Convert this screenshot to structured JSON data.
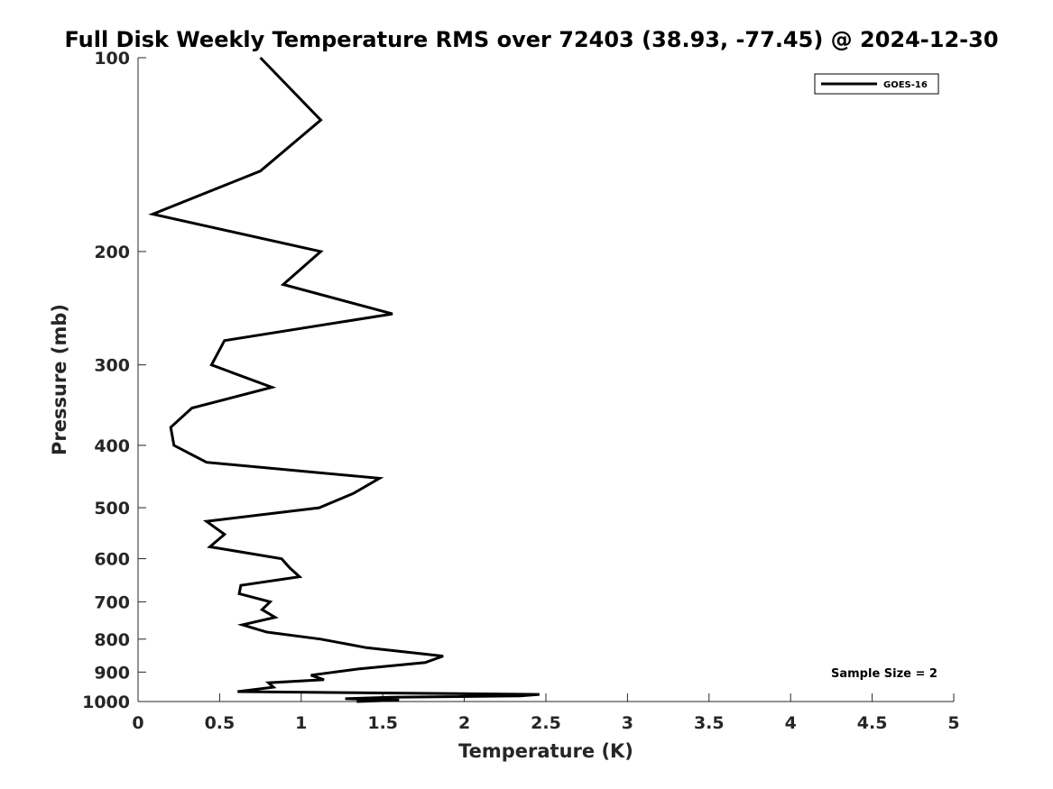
{
  "chart_data": {
    "type": "line",
    "title": "Full Disk Weekly Temperature RMS over 72403 (38.93, -77.45) @ 2024-12-30",
    "xlabel": "Temperature (K)",
    "ylabel": "Pressure (mb)",
    "xlim": [
      0,
      5
    ],
    "ylim": [
      100,
      1000
    ],
    "y_scale": "log",
    "y_reversed": true,
    "grid": false,
    "x_ticks": [
      "0",
      "0.5",
      "1",
      "1.5",
      "2",
      "2.5",
      "3",
      "3.5",
      "4",
      "4.5",
      "5"
    ],
    "y_ticks": [
      "100",
      "200",
      "300",
      "400",
      "500",
      "600",
      "700",
      "800",
      "900",
      "1000"
    ],
    "legend": {
      "position": "top-right",
      "entries": [
        "GOES-16"
      ]
    },
    "annotation": "Sample Size = 2",
    "series": [
      {
        "name": "GOES-16",
        "color": "#000000",
        "points": [
          [
            0.75,
            100
          ],
          [
            1.12,
            125
          ],
          [
            0.75,
            150
          ],
          [
            0.09,
            175
          ],
          [
            1.12,
            200
          ],
          [
            0.89,
            225
          ],
          [
            1.56,
            250
          ],
          [
            0.53,
            275
          ],
          [
            0.45,
            300
          ],
          [
            0.82,
            325
          ],
          [
            0.33,
            350
          ],
          [
            0.2,
            375
          ],
          [
            0.22,
            400
          ],
          [
            0.42,
            425
          ],
          [
            1.48,
            450
          ],
          [
            1.32,
            475
          ],
          [
            1.11,
            500
          ],
          [
            0.42,
            525
          ],
          [
            0.53,
            550
          ],
          [
            0.44,
            575
          ],
          [
            0.88,
            600
          ],
          [
            0.93,
            620
          ],
          [
            0.99,
            640
          ],
          [
            0.63,
            660
          ],
          [
            0.62,
            680
          ],
          [
            0.81,
            700
          ],
          [
            0.76,
            720
          ],
          [
            0.84,
            740
          ],
          [
            0.64,
            760
          ],
          [
            0.79,
            780
          ],
          [
            1.12,
            800
          ],
          [
            1.4,
            825
          ],
          [
            1.87,
            850
          ],
          [
            1.76,
            870
          ],
          [
            1.35,
            890
          ],
          [
            1.06,
            910
          ],
          [
            1.14,
            925
          ],
          [
            0.8,
            935
          ],
          [
            0.83,
            950
          ],
          [
            0.61,
            965
          ],
          [
            2.46,
            975
          ],
          [
            2.34,
            980
          ],
          [
            1.55,
            985
          ],
          [
            1.27,
            990
          ],
          [
            1.6,
            995
          ],
          [
            1.34,
            1000
          ]
        ]
      }
    ]
  }
}
